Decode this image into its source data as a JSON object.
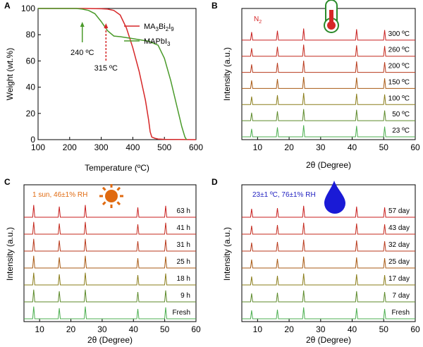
{
  "chart_data": [
    {
      "panel": "A",
      "type": "line",
      "xlabel": "Temperature (ºC)",
      "ylabel": "Weight (wt.%)",
      "xlim": [
        100,
        600
      ],
      "ylim": [
        0,
        100
      ],
      "xticks": [
        "100",
        "200",
        "300",
        "400",
        "500",
        "600"
      ],
      "yticks": [
        "0",
        "20",
        "40",
        "60",
        "80",
        "100"
      ],
      "legend": {
        "position": "top-right"
      },
      "series": [
        {
          "name": "MA3Bi2I9",
          "label_main": "MA",
          "label_sub1": "3",
          "label_mid": "Bi",
          "label_sub2": "2",
          "label_mid2": "I",
          "label_sub3": "9",
          "color": "#d62728",
          "x": [
            100,
            250,
            300,
            320,
            340,
            360,
            380,
            400,
            420,
            440,
            450,
            455,
            460,
            470,
            480,
            500,
            600
          ],
          "y": [
            100,
            100,
            99.8,
            99.5,
            98.5,
            95,
            85,
            70,
            52,
            30,
            15,
            6,
            2,
            1,
            0.5,
            0.2,
            0
          ]
        },
        {
          "name": "MAPbI3",
          "label_main": "MAPbI",
          "label_sub1": "3",
          "color": "#4a9a2a",
          "x": [
            100,
            220,
            240,
            260,
            280,
            300,
            320,
            340,
            360,
            400,
            450,
            480,
            500,
            520,
            540,
            555,
            565,
            570
          ],
          "y": [
            100,
            100,
            99.5,
            98.5,
            96,
            90,
            83,
            79,
            78.5,
            77,
            75,
            72,
            62,
            45,
            25,
            10,
            2,
            0
          ]
        }
      ],
      "annotations": [
        {
          "text": "240 ºC",
          "x": 240,
          "style": "solid arrow",
          "color": "#4a9a2a"
        },
        {
          "text": "315 ºC",
          "x": 315,
          "style": "dashed arrow",
          "color": "#d62728"
        }
      ]
    },
    {
      "panel": "B",
      "type": "line",
      "xlabel": "2θ (Degree)",
      "ylabel": "Intensity (a.u.)",
      "xlim": [
        5,
        60
      ],
      "xticks": [
        "10",
        "20",
        "30",
        "40",
        "50",
        "60"
      ],
      "condition": "N",
      "condition_sub": "2",
      "icon": "thermometer-icon",
      "series_labels": [
        "23 ºC",
        "50 ºC",
        "100 ºC",
        "150 ºC",
        "200 ºC",
        "260 ºC",
        "300 ºC"
      ],
      "peaks": [
        8.1,
        16.3,
        24.6,
        41.4,
        50.3
      ],
      "peak_heights": [
        0.55,
        0.65,
        0.8,
        0.75,
        0.7
      ]
    },
    {
      "panel": "C",
      "type": "line",
      "xlabel": "2θ (Degree)",
      "ylabel": "Intensity (a.u.)",
      "xlim": [
        5,
        60
      ],
      "xticks": [
        "10",
        "20",
        "30",
        "40",
        "50",
        "60"
      ],
      "condition": "1 sun, 46±1% RH",
      "icon": "sun-icon",
      "series_labels": [
        "Fresh",
        "9 h",
        "18 h",
        "25 h",
        "31 h",
        "41 h",
        "63 h"
      ],
      "peaks": [
        8.1,
        16.3,
        24.6,
        41.4,
        50.3
      ],
      "peak_heights": [
        0.8,
        0.7,
        0.8,
        0.65,
        0.75
      ]
    },
    {
      "panel": "D",
      "type": "line",
      "xlabel": "2θ (Degree)",
      "ylabel": "Intensity (a.u.)",
      "xlim": [
        5,
        60
      ],
      "xticks": [
        "10",
        "20",
        "30",
        "40",
        "50",
        "60"
      ],
      "condition": "23±1 ºC, 76±1% RH",
      "icon": "water-drop-icon",
      "series_labels": [
        "Fresh",
        "7 day",
        "17 day",
        "25 day",
        "32 day",
        "43 day",
        "57 day"
      ],
      "peaks": [
        8.1,
        16.3,
        24.6,
        41.4,
        50.3
      ],
      "peak_heights": [
        0.55,
        0.6,
        0.75,
        0.7,
        0.65
      ]
    }
  ],
  "colors": {
    "xrd_gradient": [
      "#4caf50",
      "#5c8a2a",
      "#8a7d1a",
      "#a85a14",
      "#b83a1c",
      "#c42a1e",
      "#c81e1e"
    ],
    "panel_c_condition": "#e06a10",
    "panel_d_condition": "#2020c0",
    "panel_b_condition": "#d62728"
  },
  "panel_letters": [
    "A",
    "B",
    "C",
    "D"
  ]
}
